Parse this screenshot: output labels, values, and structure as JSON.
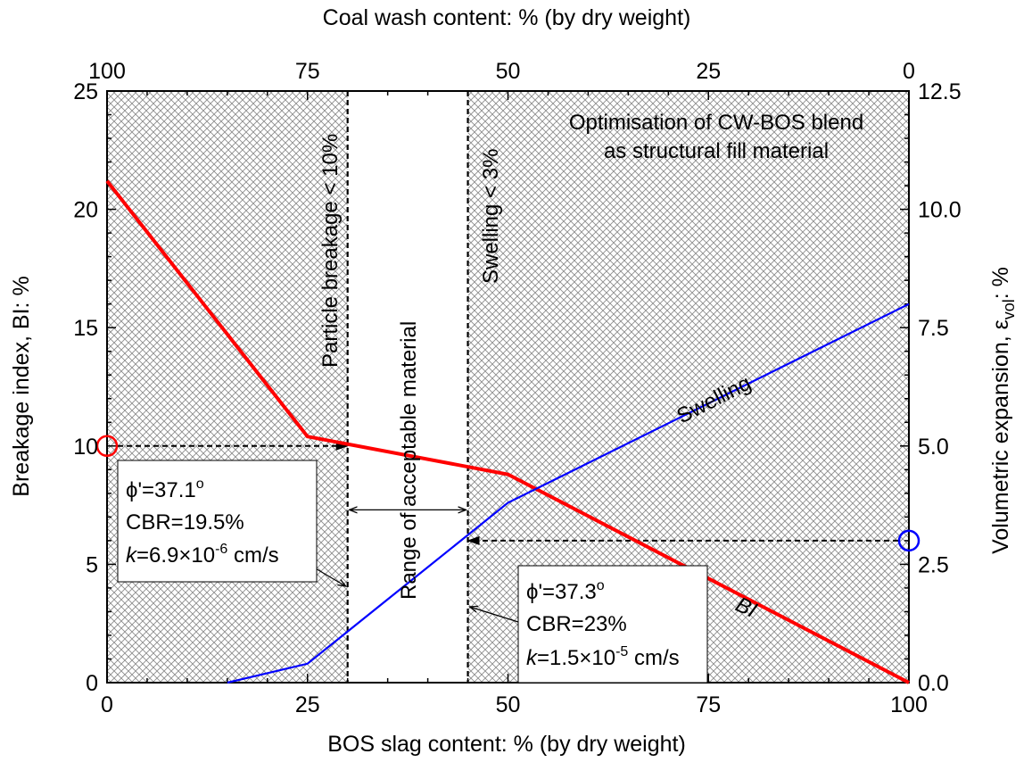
{
  "chart_data": {
    "type": "line",
    "x_bottom": {
      "label": "BOS slag content: % (by dry weight)",
      "range": [
        0,
        100
      ],
      "ticks": [
        "0",
        "25",
        "50",
        "75",
        "100"
      ]
    },
    "x_top": {
      "label": "Coal wash content: % (by dry weight)",
      "range": [
        100,
        0
      ],
      "ticks": [
        "100",
        "75",
        "50",
        "25",
        "0"
      ]
    },
    "y_left": {
      "label": "Breakage index, BI: %",
      "range": [
        0,
        25
      ],
      "ticks": [
        "0",
        "5",
        "10",
        "15",
        "20",
        "25"
      ]
    },
    "y_right": {
      "label_main": "Volumetric expansion, ε",
      "label_sub": "vol",
      "label_tail": ": %",
      "range": [
        0,
        12.5
      ],
      "ticks": [
        "0.0",
        "2.5",
        "5.0",
        "7.5",
        "10.0",
        "12.5"
      ]
    },
    "series": [
      {
        "name": "BI",
        "axis": "left",
        "color": "#ff0000",
        "points": [
          [
            0,
            21.2
          ],
          [
            25,
            10.4
          ],
          [
            50,
            8.8
          ],
          [
            100,
            0
          ]
        ]
      },
      {
        "name": "Swelling",
        "axis": "right",
        "color": "#0000ff",
        "points": [
          [
            15,
            0
          ],
          [
            25,
            0.4
          ],
          [
            50,
            3.8
          ],
          [
            100,
            8.0
          ]
        ]
      }
    ],
    "vertical_limits": [
      {
        "x": 30,
        "label": "Particle breakage < 10%"
      },
      {
        "x": 45,
        "label": "Swelling < 3%"
      }
    ],
    "range_label": "Range of acceptable material",
    "title_note_line1": "Optimisation of CW-BOS blend",
    "title_note_line2": "as structural fill material",
    "markers": [
      {
        "x": 0,
        "y_left": 10,
        "color": "#ff0000"
      },
      {
        "x": 100,
        "y_right": 3,
        "color": "#0000ff"
      }
    ],
    "guides": [
      {
        "from": [
          0,
          10
        ],
        "to": [
          30,
          10
        ],
        "axis": "left"
      },
      {
        "from": [
          100,
          3
        ],
        "to": [
          45,
          3
        ],
        "axis": "right"
      }
    ],
    "box_left": {
      "phi": "ϕ'=37.1",
      "deg": "o",
      "cbr": "CBR=19.5%",
      "k_sym": "k",
      "k_val": "=6.9×10",
      "k_exp": "-6",
      "k_unit": " cm/s"
    },
    "box_right": {
      "phi": "ϕ'=37.3",
      "deg": "o",
      "cbr": "CBR=23%",
      "k_sym": "k",
      "k_val": "=1.5×10",
      "k_exp": "-5",
      "k_unit": " cm/s"
    },
    "grid": false,
    "hatched_background": true,
    "hatch_color": "#8c8c8c"
  }
}
